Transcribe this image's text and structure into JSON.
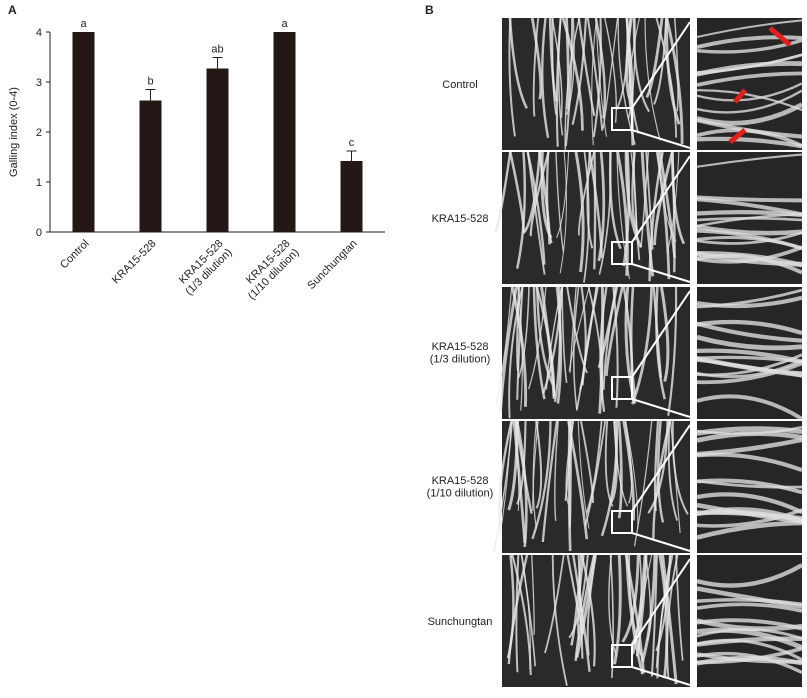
{
  "chart_data": {
    "type": "bar",
    "panel_label": "A",
    "y_label": "Galling index (0-4)",
    "categories": [
      "Control",
      "KRA15-528",
      "KRA15-528\n(1/3 dilution)",
      "KRA15-528\n(1/10 dilution)",
      "Sunchungtan"
    ],
    "values": [
      4,
      2.63,
      3.27,
      4,
      1.42
    ],
    "errors": [
      0,
      0.22,
      0.22,
      0,
      0.2
    ],
    "annotations": [
      "a",
      "b",
      "ab",
      "a",
      "c"
    ],
    "color": "#231815",
    "ylim": [
      0,
      4
    ],
    "yticks": [
      0,
      1,
      2,
      3,
      4
    ]
  },
  "panel_b": {
    "label": "B",
    "rows": [
      "Control",
      "KRA15-528",
      "KRA15-528\n(1/3 dilution)",
      "KRA15-528\n(1/10 dilution)",
      "Sunchungtan"
    ]
  }
}
